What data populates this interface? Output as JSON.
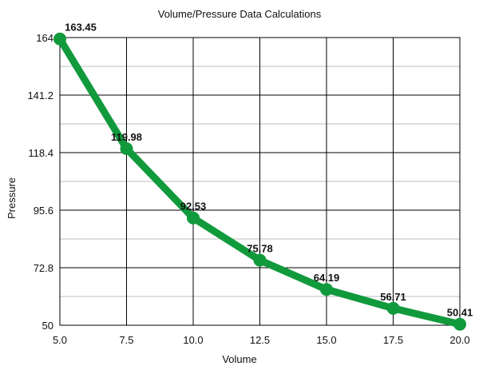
{
  "chart_data": {
    "type": "line",
    "title": "Volume/Pressure Data Calculations",
    "xlabel": "Volume",
    "ylabel": "Pressure",
    "xlim": [
      5.0,
      20.0
    ],
    "ylim": [
      50,
      164
    ],
    "x_ticks": [
      "5.0",
      "7.5",
      "10.0",
      "12.5",
      "15.0",
      "17.5",
      "20.0"
    ],
    "y_ticks": [
      "50",
      "72.8",
      "95.6",
      "118.4",
      "141.2",
      "164"
    ],
    "grid": true,
    "legend": "none",
    "series": [
      {
        "color": "#119A3C",
        "x": [
          5.0,
          7.5,
          10.0,
          12.5,
          15.0,
          17.5,
          20.0
        ],
        "values": [
          163.45,
          119.98,
          92.53,
          75.78,
          64.19,
          56.71,
          50.41
        ],
        "labels": [
          "163.45",
          "119.98",
          "92.53",
          "75.78",
          "64.19",
          "56.71",
          "50.41"
        ]
      }
    ]
  }
}
